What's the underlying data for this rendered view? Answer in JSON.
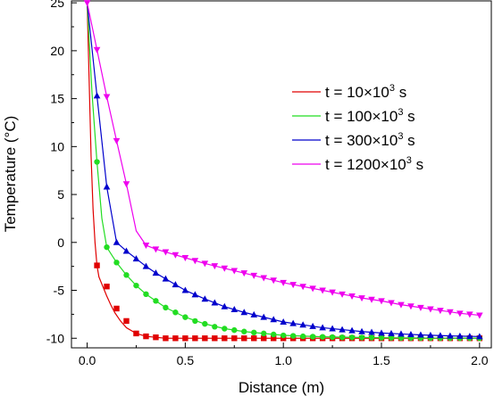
{
  "chart_data": {
    "type": "line",
    "title": "",
    "xlabel": "Distance (m)",
    "ylabel": "Temperature (°C)",
    "xlim": [
      -0.08,
      2.06
    ],
    "ylim": [
      -11,
      25.2
    ],
    "xticks": [
      0.0,
      0.5,
      1.0,
      1.5,
      2.0
    ],
    "xtick_labels": [
      "0.0",
      "0.5",
      "1.0",
      "1.5",
      "2.0"
    ],
    "yticks": [
      -10,
      -5,
      0,
      5,
      10,
      15,
      20,
      25
    ],
    "ytick_labels": [
      "-10",
      "-5",
      "0",
      "5",
      "10",
      "15",
      "20",
      "25"
    ],
    "grid": false,
    "legend_position": "top-right",
    "series": [
      {
        "name": "t = 10×10³ s",
        "label_main": "t = 10×10",
        "label_sup": "3",
        "label_tail": " s",
        "color": "#e00000",
        "marker": "square",
        "curve_x": [
          0,
          0.01,
          0.02,
          0.03,
          0.04,
          0.05,
          0.06,
          0.08,
          0.1,
          0.12,
          0.14,
          0.17,
          0.2,
          0.25,
          0.3,
          0.35,
          0.4,
          0.5,
          0.6,
          0.8,
          1.0,
          1.2,
          1.5,
          2.0
        ],
        "curve_y": [
          25,
          17,
          9,
          3.5,
          0,
          -2.4,
          -3.6,
          -4.6,
          -5.6,
          -6.5,
          -7.3,
          -8.2,
          -8.9,
          -9.5,
          -9.8,
          -9.9,
          -10,
          -10,
          -10,
          -10,
          -10,
          -10,
          -10,
          -10
        ],
        "marker_x": [
          0.05,
          0.1,
          0.15,
          0.2,
          0.25,
          0.3,
          0.35,
          0.4,
          0.45,
          0.5,
          0.55,
          0.6,
          0.65,
          0.7,
          0.75,
          0.8,
          0.85,
          0.9,
          0.95,
          1.0,
          1.05,
          1.1,
          1.15,
          1.2,
          1.25,
          1.3,
          1.35,
          1.4,
          1.45,
          1.5,
          1.55,
          1.6,
          1.65,
          1.7,
          1.75,
          1.8,
          1.85,
          1.9,
          1.95,
          2.0
        ],
        "marker_y": [
          -2.4,
          -4.6,
          -6.9,
          -8.2,
          -9.5,
          -9.8,
          -9.9,
          -10,
          -10,
          -10,
          -10,
          -10,
          -10,
          -10,
          -10,
          -10,
          -10,
          -10,
          -10,
          -10,
          -10,
          -10,
          -10,
          -10,
          -10,
          -10,
          -10,
          -10,
          -10,
          -10,
          -10,
          -10,
          -10,
          -10,
          -10,
          -10,
          -10,
          -10,
          -10,
          -10
        ]
      },
      {
        "name": "t = 100×10³ s",
        "label_main": "t = 100×10",
        "label_sup": "3",
        "label_tail": " s",
        "color": "#22dd22",
        "marker": "circle",
        "curve_x": [
          0,
          0.025,
          0.05,
          0.075,
          0.1,
          0.125,
          0.15,
          0.2,
          0.25,
          0.3,
          0.35,
          0.4,
          0.5,
          0.6,
          0.7,
          0.8,
          0.9,
          1.0,
          1.2,
          1.4,
          1.6,
          1.8,
          2.0
        ],
        "curve_y": [
          25,
          15.5,
          8.4,
          2.5,
          -0.5,
          -1.3,
          -2.1,
          -3.4,
          -4.5,
          -5.4,
          -6.1,
          -6.8,
          -7.8,
          -8.5,
          -9.0,
          -9.3,
          -9.5,
          -9.7,
          -9.85,
          -9.92,
          -9.96,
          -9.98,
          -10
        ],
        "marker_x": [
          0.05,
          0.1,
          0.15,
          0.2,
          0.25,
          0.3,
          0.35,
          0.4,
          0.45,
          0.5,
          0.55,
          0.6,
          0.65,
          0.7,
          0.75,
          0.8,
          0.85,
          0.9,
          0.95,
          1.0,
          1.05,
          1.1,
          1.15,
          1.2,
          1.25,
          1.3,
          1.35,
          1.4,
          1.45,
          1.5,
          1.55,
          1.6,
          1.65,
          1.7,
          1.75,
          1.8,
          1.85,
          1.9,
          1.95,
          2.0
        ],
        "marker_y": [
          8.4,
          -0.5,
          -2.1,
          -3.4,
          -4.5,
          -5.4,
          -6.1,
          -6.8,
          -7.3,
          -7.8,
          -8.2,
          -8.5,
          -8.8,
          -9.0,
          -9.15,
          -9.3,
          -9.4,
          -9.5,
          -9.6,
          -9.7,
          -9.75,
          -9.8,
          -9.83,
          -9.85,
          -9.88,
          -9.9,
          -9.91,
          -9.92,
          -9.93,
          -9.94,
          -9.95,
          -9.96,
          -9.96,
          -9.97,
          -9.97,
          -9.98,
          -9.98,
          -9.99,
          -9.99,
          -10
        ]
      },
      {
        "name": "t = 300×10³ s",
        "label_main": "t = 300×10",
        "label_sup": "3",
        "label_tail": " s",
        "color": "#0000cc",
        "marker": "triangle-up",
        "curve_x": [
          0,
          0.05,
          0.1,
          0.15,
          0.2,
          0.25,
          0.3,
          0.35,
          0.4,
          0.45,
          0.5,
          0.6,
          0.7,
          0.8,
          0.9,
          1.0,
          1.1,
          1.2,
          1.3,
          1.4,
          1.5,
          1.6,
          1.7,
          1.8,
          1.9,
          2.0
        ],
        "curve_y": [
          25,
          15.3,
          5.8,
          0,
          -0.9,
          -1.7,
          -2.5,
          -3.2,
          -3.8,
          -4.4,
          -5.0,
          -5.9,
          -6.7,
          -7.3,
          -7.8,
          -8.3,
          -8.6,
          -8.9,
          -9.1,
          -9.3,
          -9.45,
          -9.55,
          -9.65,
          -9.72,
          -9.78,
          -9.82
        ],
        "marker_x": [
          0.05,
          0.1,
          0.15,
          0.2,
          0.25,
          0.3,
          0.35,
          0.4,
          0.45,
          0.5,
          0.55,
          0.6,
          0.65,
          0.7,
          0.75,
          0.8,
          0.85,
          0.9,
          0.95,
          1.0,
          1.05,
          1.1,
          1.15,
          1.2,
          1.25,
          1.3,
          1.35,
          1.4,
          1.45,
          1.5,
          1.55,
          1.6,
          1.65,
          1.7,
          1.75,
          1.8,
          1.85,
          1.9,
          1.95,
          2.0
        ],
        "marker_y": [
          15.3,
          5.8,
          0,
          -0.9,
          -1.7,
          -2.5,
          -3.2,
          -3.8,
          -4.4,
          -5.0,
          -5.45,
          -5.9,
          -6.3,
          -6.7,
          -7.0,
          -7.3,
          -7.55,
          -7.8,
          -8.05,
          -8.3,
          -8.45,
          -8.6,
          -8.75,
          -8.9,
          -9.0,
          -9.1,
          -9.2,
          -9.3,
          -9.37,
          -9.45,
          -9.5,
          -9.55,
          -9.6,
          -9.65,
          -9.68,
          -9.72,
          -9.75,
          -9.78,
          -9.8,
          -9.82
        ]
      },
      {
        "name": "t = 1200×10³ s",
        "label_main": "t = 1200×10",
        "label_sup": "3",
        "label_tail": " s",
        "color": "#ee00ee",
        "marker": "triangle-down",
        "curve_x": [
          0,
          0.05,
          0.1,
          0.15,
          0.2,
          0.25,
          0.3,
          0.35,
          0.4,
          0.5,
          0.6,
          0.7,
          0.8,
          0.9,
          1.0,
          1.1,
          1.2,
          1.3,
          1.4,
          1.5,
          1.6,
          1.7,
          1.8,
          1.9,
          2.0
        ],
        "curve_y": [
          25,
          20.1,
          15.2,
          10.6,
          6.1,
          1.2,
          -0.3,
          -0.7,
          -1.0,
          -1.6,
          -2.2,
          -2.7,
          -3.2,
          -3.7,
          -4.2,
          -4.6,
          -5.0,
          -5.4,
          -5.8,
          -6.1,
          -6.5,
          -6.8,
          -7.1,
          -7.4,
          -7.6
        ],
        "marker_x": [
          0.0,
          0.05,
          0.1,
          0.15,
          0.2,
          0.3,
          0.35,
          0.4,
          0.45,
          0.5,
          0.55,
          0.6,
          0.65,
          0.7,
          0.75,
          0.8,
          0.85,
          0.9,
          0.95,
          1.0,
          1.05,
          1.1,
          1.15,
          1.2,
          1.25,
          1.3,
          1.35,
          1.4,
          1.45,
          1.5,
          1.55,
          1.6,
          1.65,
          1.7,
          1.75,
          1.8,
          1.85,
          1.9,
          1.95,
          2.0
        ],
        "marker_y": [
          25,
          20.1,
          15.2,
          10.6,
          6.1,
          -0.3,
          -0.7,
          -1.0,
          -1.3,
          -1.6,
          -1.9,
          -2.2,
          -2.45,
          -2.7,
          -2.95,
          -3.2,
          -3.45,
          -3.7,
          -3.95,
          -4.2,
          -4.4,
          -4.6,
          -4.8,
          -5.0,
          -5.2,
          -5.4,
          -5.6,
          -5.8,
          -5.95,
          -6.1,
          -6.3,
          -6.5,
          -6.65,
          -6.8,
          -6.95,
          -7.1,
          -7.25,
          -7.4,
          -7.5,
          -7.6
        ]
      }
    ]
  }
}
